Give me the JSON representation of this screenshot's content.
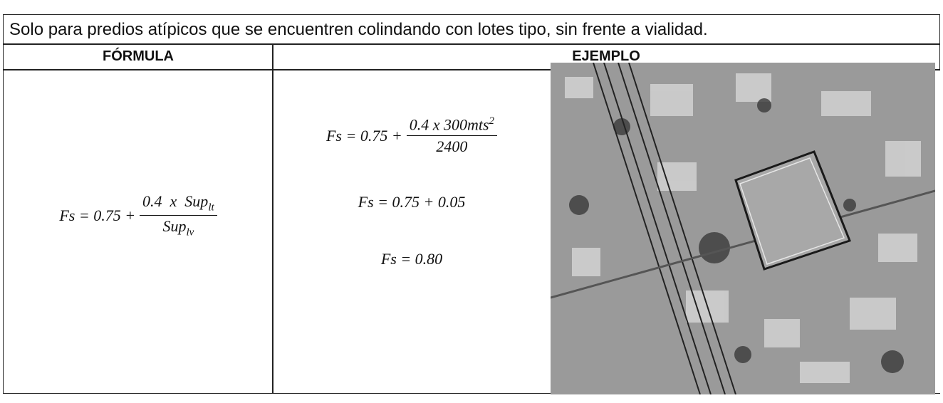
{
  "header": "Solo para predios atípicos que se encuentren colindando con lotes tipo, sin frente a vialidad.",
  "columns": [
    "FÓRMULA",
    "EJEMPLO"
  ],
  "formula": {
    "lhs": "Fs = 0.75 +",
    "numerator": {
      "text": "0.4  x  Sup",
      "sub": "lt"
    },
    "denominator": {
      "text": "Sup",
      "sub": "lv"
    }
  },
  "example": {
    "line1": {
      "lhs": "Fs = 0.75 +",
      "numerator": {
        "text": "0.4 x 300mts",
        "sup": "2"
      },
      "denominator": "2400"
    },
    "line2": "Fs = 0.75 + 0.05",
    "line3": "Fs = 0.80"
  }
}
